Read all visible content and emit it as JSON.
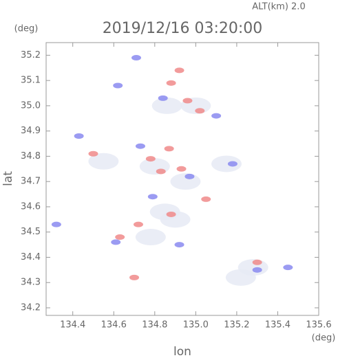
{
  "chart_data": {
    "type": "scatter",
    "title": "2019/12/16 03:20:00",
    "subtitle": "ALT(km) 2.0",
    "y_unit": "(deg)",
    "x_unit": "(deg)",
    "x_label": "lon",
    "y_label": "lat",
    "xlim": [
      134.27,
      135.6
    ],
    "ylim": [
      34.17,
      35.25
    ],
    "xticks": [
      134.4,
      134.6,
      134.8,
      {
        "value": 135,
        "label": "135.0"
      },
      135.2,
      135.4,
      135.6
    ],
    "yticks": [
      34.2,
      34.3,
      34.4,
      34.5,
      34.6,
      34.7,
      34.8,
      34.9,
      {
        "value": 35,
        "label": "35.0"
      },
      35.1,
      35.2
    ],
    "grid": false,
    "series": [
      {
        "color": "#e6eaf5",
        "x": [
          134.8,
          134.95,
          134.85,
          134.78,
          135.28,
          135.0,
          134.55,
          135.15,
          134.9,
          135.22,
          134.86
        ],
        "values": [
          34.76,
          34.7,
          34.58,
          34.48,
          34.36,
          35.0,
          34.78,
          34.77,
          34.55,
          34.32,
          35.0
        ]
      },
      {
        "color": "#f08a8a",
        "x": [
          134.92,
          134.88,
          134.96,
          135.02,
          134.78,
          134.83,
          134.93,
          134.88,
          134.72,
          134.63,
          134.7,
          135.3,
          134.5,
          134.87,
          135.05
        ],
        "values": [
          35.14,
          35.09,
          35.02,
          34.98,
          34.79,
          34.74,
          34.75,
          34.57,
          34.53,
          34.48,
          34.32,
          34.38,
          34.81,
          34.83,
          34.63
        ]
      },
      {
        "color": "#8a8af0",
        "x": [
          134.71,
          134.62,
          134.84,
          135.1,
          134.43,
          134.73,
          134.97,
          134.79,
          134.61,
          135.3,
          135.45,
          134.32,
          135.18,
          134.92
        ],
        "values": [
          35.19,
          35.08,
          35.03,
          34.96,
          34.88,
          34.84,
          34.72,
          34.64,
          34.46,
          34.35,
          34.36,
          34.53,
          34.77,
          34.45
        ]
      }
    ]
  }
}
